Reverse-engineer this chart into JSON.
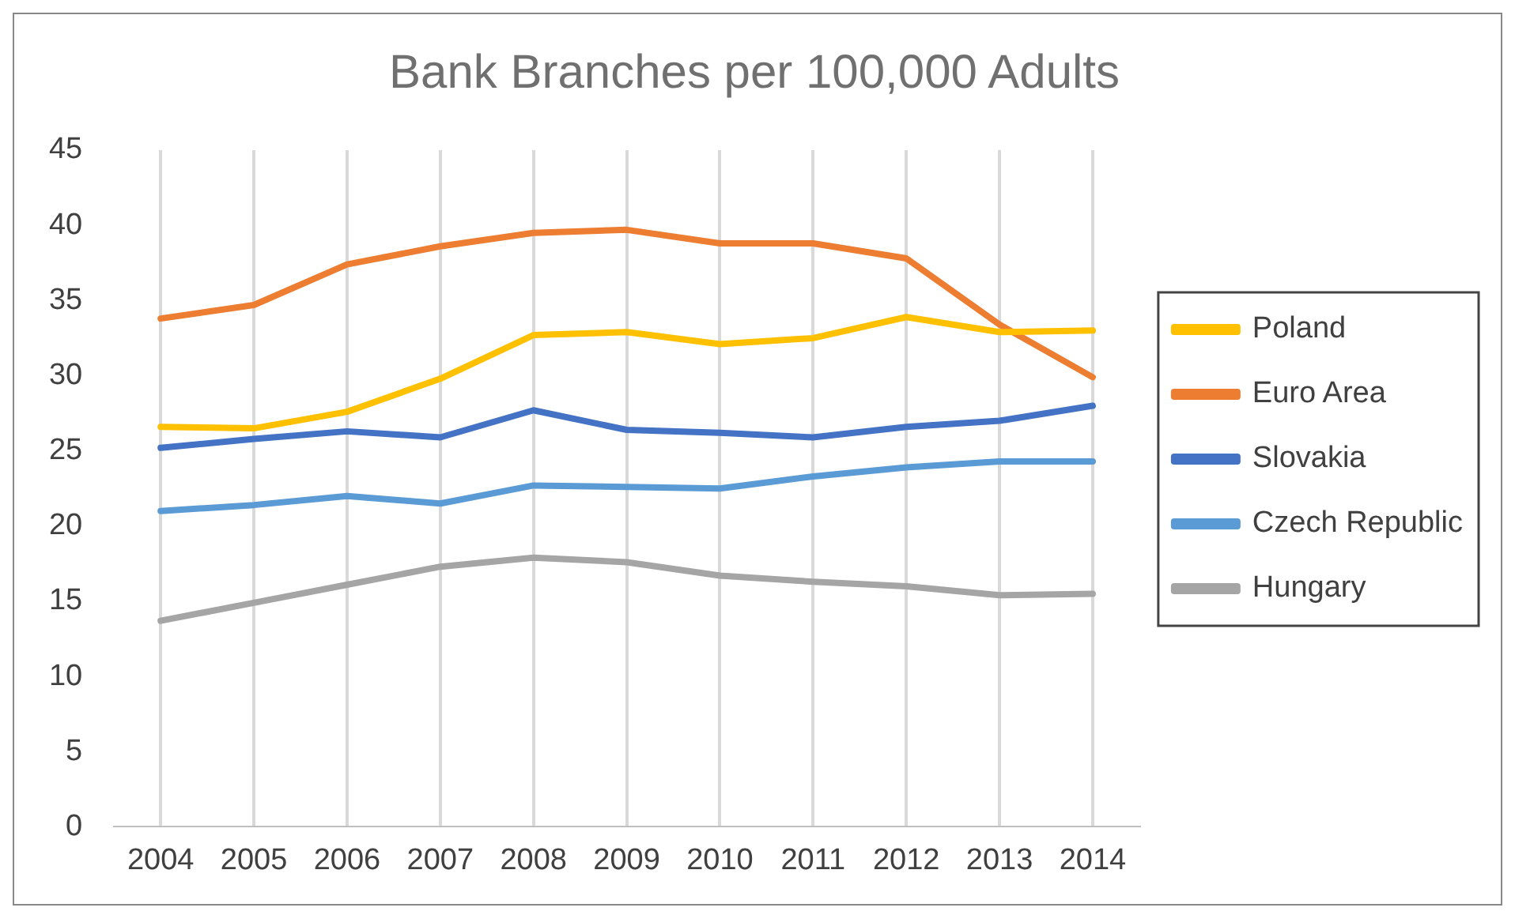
{
  "chart_data": {
    "type": "line",
    "title": "Bank Branches per 100,000 Adults",
    "categories": [
      "2004",
      "2005",
      "2006",
      "2007",
      "2008",
      "2009",
      "2010",
      "2011",
      "2012",
      "2013",
      "2014"
    ],
    "series": [
      {
        "name": "Poland",
        "color": "#ffc000",
        "values": [
          26.6,
          26.5,
          27.6,
          29.8,
          32.7,
          32.9,
          32.1,
          32.5,
          33.9,
          32.9,
          33.0
        ]
      },
      {
        "name": "Euro Area",
        "color": "#ed7d31",
        "values": [
          33.8,
          34.7,
          37.4,
          38.6,
          39.5,
          39.7,
          38.8,
          38.8,
          37.8,
          33.4,
          29.9
        ]
      },
      {
        "name": "Slovakia",
        "color": "#4472c4",
        "values": [
          25.2,
          25.8,
          26.3,
          25.9,
          27.7,
          26.4,
          26.2,
          25.9,
          26.6,
          27.0,
          28.0
        ]
      },
      {
        "name": "Czech Republic",
        "color": "#5b9bd5",
        "values": [
          21.0,
          21.4,
          22.0,
          21.5,
          22.7,
          22.6,
          22.5,
          23.3,
          23.9,
          24.3,
          24.3
        ]
      },
      {
        "name": "Hungary",
        "color": "#a5a5a5",
        "values": [
          13.7,
          14.9,
          16.1,
          17.3,
          17.9,
          17.6,
          16.7,
          16.3,
          16.0,
          15.4,
          15.5
        ]
      }
    ],
    "ylim": [
      0,
      45
    ],
    "yticks": [
      0,
      5,
      10,
      15,
      20,
      25,
      30,
      35,
      40,
      45
    ],
    "grid": "x",
    "legend": "right",
    "marker": "none",
    "line_style": "solid"
  }
}
